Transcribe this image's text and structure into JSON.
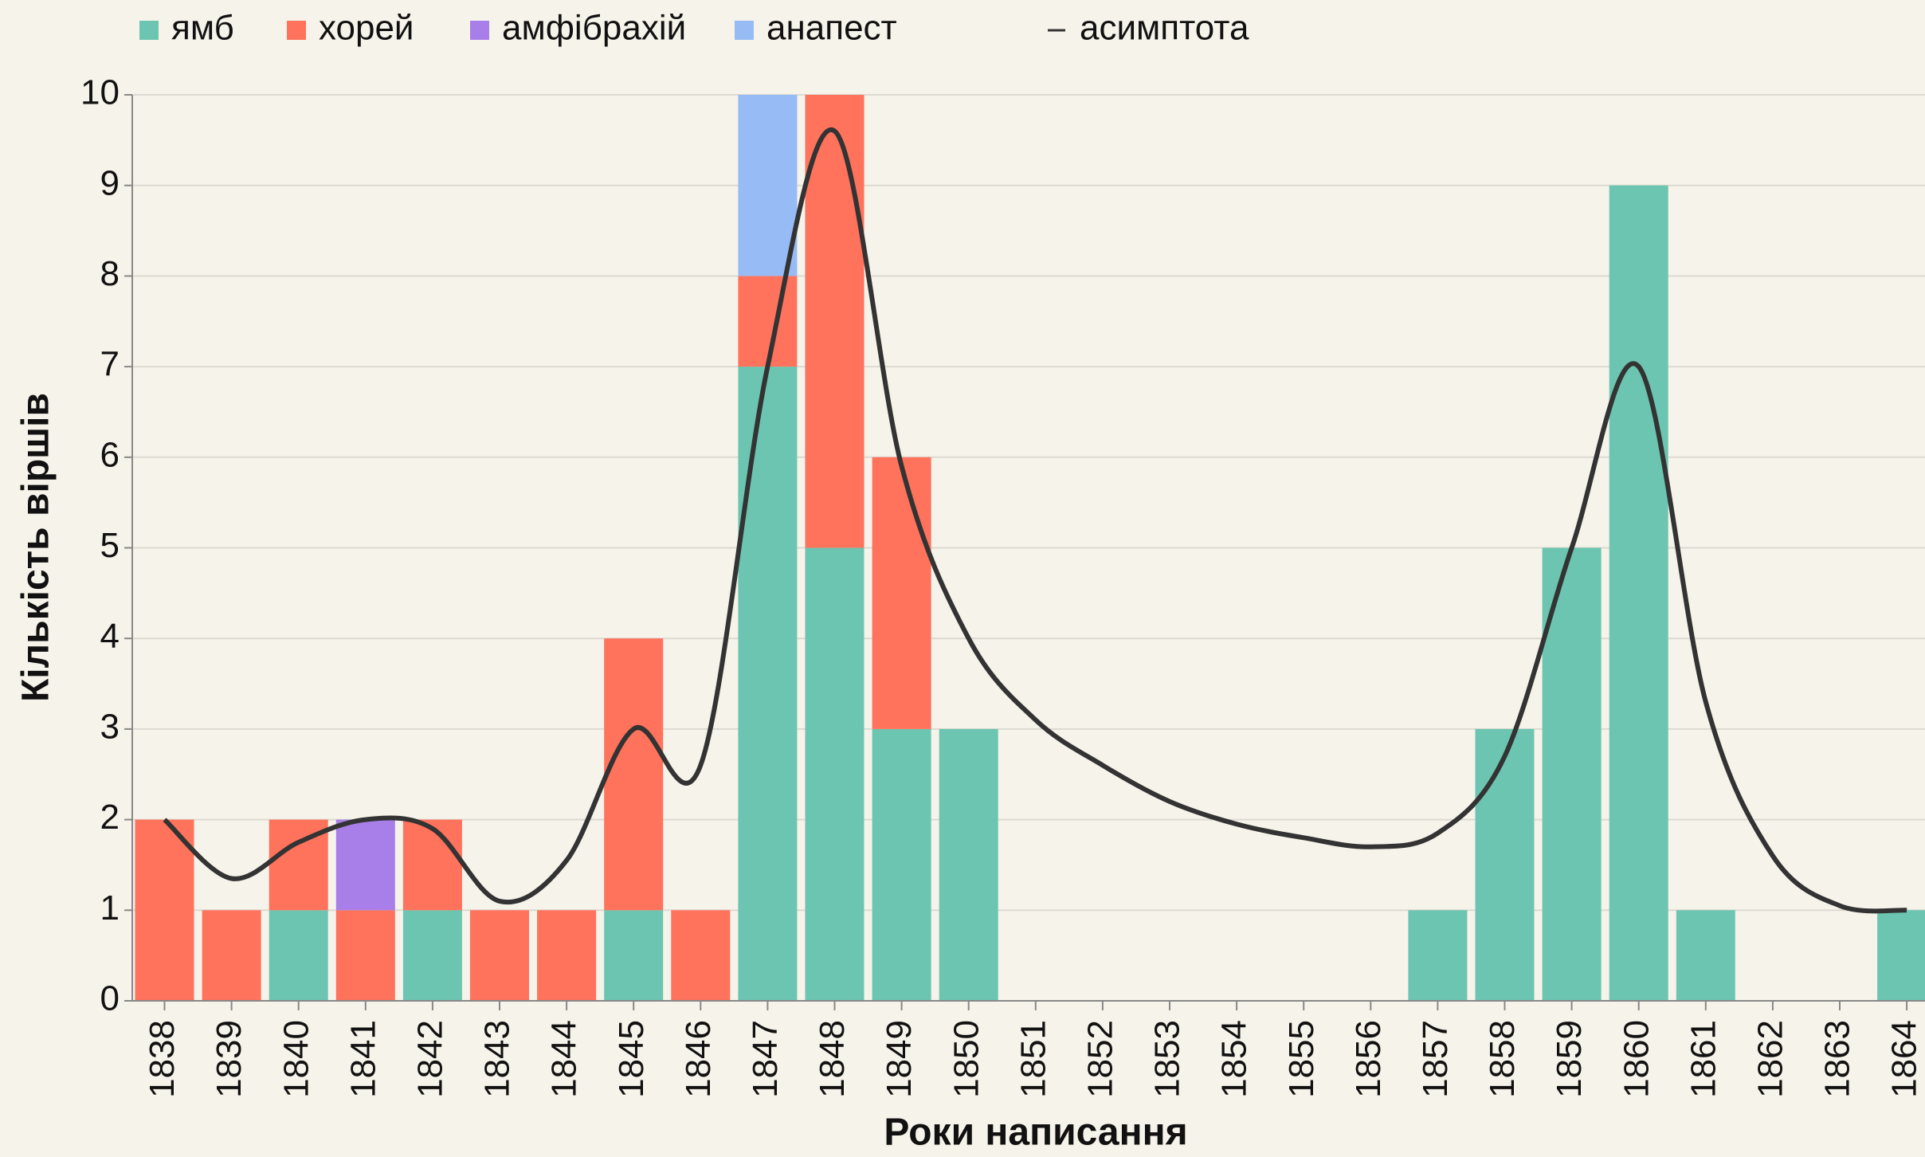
{
  "chart_data": {
    "type": "bar",
    "stacked": true,
    "xlabel": "Роки написання",
    "ylabel": "Кількість віршів",
    "categories": [
      "1838",
      "1839",
      "1840",
      "1841",
      "1842",
      "1843",
      "1844",
      "1845",
      "1846",
      "1847",
      "1848",
      "1849",
      "1850",
      "1851",
      "1852",
      "1853",
      "1854",
      "1855",
      "1856",
      "1857",
      "1858",
      "1859",
      "1860",
      "1861",
      "1862",
      "1863",
      "1864"
    ],
    "series": [
      {
        "name": "ямб",
        "color": "#6cc5b0",
        "values": [
          0,
          0,
          1,
          0,
          1,
          0,
          0,
          1,
          0,
          7,
          5,
          3,
          3,
          0,
          0,
          0,
          0,
          0,
          0,
          1,
          3,
          5,
          9,
          1,
          0,
          0,
          1
        ]
      },
      {
        "name": "хорей",
        "color": "#ff725c",
        "values": [
          2,
          1,
          1,
          1,
          1,
          1,
          1,
          3,
          1,
          1,
          5,
          3,
          0,
          0,
          0,
          0,
          0,
          0,
          0,
          0,
          0,
          0,
          0,
          0,
          0,
          0,
          0
        ]
      },
      {
        "name": "амфібрахій",
        "color": "#a87ee8",
        "values": [
          0,
          0,
          0,
          1,
          0,
          0,
          0,
          0,
          0,
          0,
          0,
          0,
          0,
          0,
          0,
          0,
          0,
          0,
          0,
          0,
          0,
          0,
          0,
          0,
          0,
          0,
          0
        ]
      },
      {
        "name": "анапест",
        "color": "#97bbf5",
        "values": [
          0,
          0,
          0,
          0,
          0,
          0,
          0,
          0,
          0,
          2,
          0,
          0,
          0,
          0,
          0,
          0,
          0,
          0,
          0,
          0,
          0,
          0,
          0,
          0,
          0,
          0,
          0
        ]
      },
      {
        "name": "асимптота",
        "type": "line",
        "color": "#333333",
        "values": [
          2,
          1.35,
          1.75,
          2,
          1.9,
          1.1,
          1.55,
          3,
          2.6,
          7,
          9.6,
          5.9,
          4,
          3.1,
          2.6,
          2.2,
          1.95,
          1.8,
          1.7,
          1.85,
          2.7,
          5,
          7,
          3.3,
          1.6,
          1.05,
          1
        ]
      }
    ],
    "ylim": [
      0,
      10
    ],
    "yticks": [
      0,
      1,
      2,
      3,
      4,
      5,
      6,
      7,
      8,
      9,
      10
    ],
    "grid": true
  }
}
